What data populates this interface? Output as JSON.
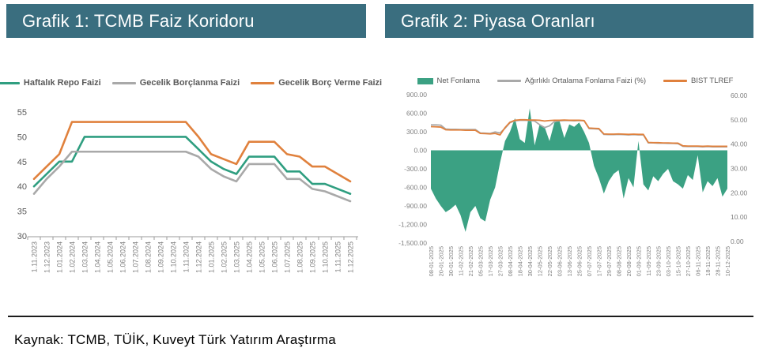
{
  "page": {
    "source_note": "Kaynak: TCMB, TÜİK,  Kuveyt Türk Yatırım Araştırma"
  },
  "colors": {
    "header_bg": "#3a6e7f",
    "teal_line": "#2f9e80",
    "gray_line": "#a9a9a9",
    "orange_line": "#e0813d",
    "green_area": "#3ba183",
    "axis_label": "#7f7f7f",
    "tick_label": "#595959"
  },
  "chart_data": [
    {
      "type": "line",
      "title": "Grafik 1: TCMB Faiz Koridoru",
      "legend_position": "top",
      "grid": false,
      "ylim": [
        30,
        55
      ],
      "yticks": [
        30,
        35,
        40,
        45,
        50,
        55
      ],
      "categories": [
        "1.11.2023",
        "1.12.2023",
        "1.01.2024",
        "1.02.2024",
        "1.03.2024",
        "1.04.2024",
        "1.05.2024",
        "1.06.2024",
        "1.07.2024",
        "1.08.2024",
        "1.09.2024",
        "1.10.2024",
        "1.11.2024",
        "1.12.2024",
        "1.01.2025",
        "1.02.2025",
        "1.03.2025",
        "1.04.2025",
        "1.05.2025",
        "1.06.2025",
        "1.07.2025",
        "1.08.2025",
        "1.09.2025",
        "1.10.2025",
        "1.11.2025",
        "1.12.2025"
      ],
      "series": [
        {
          "name": "Haftalık Repo Faizi",
          "color": "#2f9e80",
          "marker": "line",
          "values": [
            40,
            42.5,
            45,
            45,
            50,
            50,
            50,
            50,
            50,
            50,
            50,
            50,
            50,
            47.5,
            45,
            43.5,
            42.5,
            46,
            46,
            46,
            43,
            43,
            40.5,
            40.5,
            39.5,
            38.5
          ]
        },
        {
          "name": "Gecelik Borçlanma Faizi",
          "color": "#a9a9a9",
          "marker": "line",
          "values": [
            38.5,
            41.5,
            44,
            47,
            47,
            47,
            47,
            47,
            47,
            47,
            47,
            47,
            47,
            46,
            43.5,
            42,
            41,
            44.5,
            44.5,
            44.5,
            41.5,
            41.5,
            39.5,
            39,
            38,
            37
          ]
        },
        {
          "name": "Gecelik Borç Verme Faizi",
          "color": "#e0813d",
          "marker": "line",
          "values": [
            41.5,
            44,
            46.5,
            53,
            53,
            53,
            53,
            53,
            53,
            53,
            53,
            53,
            53,
            50,
            46.5,
            45.5,
            44.5,
            49,
            49,
            49,
            46.5,
            46,
            44,
            44,
            42.5,
            41
          ]
        }
      ]
    },
    {
      "type": "combo",
      "title": "Grafik 2: Piyasa Oranları",
      "legend_position": "top",
      "grid": false,
      "left_ylim": [
        -1500,
        900
      ],
      "left_ytick_values": [
        900,
        600,
        300,
        0,
        -300,
        -600,
        -900,
        -1200,
        -1500
      ],
      "left_ytick_labels": [
        "900.00",
        "600.00",
        "300.00",
        "0.00",
        "-300.00",
        "-600.00",
        "-900.00",
        "-1,200.00",
        "-1,500.00"
      ],
      "right_ylim": [
        0,
        60
      ],
      "right_ytick_values": [
        60,
        50,
        40,
        30,
        20,
        10,
        0
      ],
      "right_ytick_labels": [
        "60.00",
        "50.00",
        "40.00",
        "30.00",
        "20.00",
        "10.00",
        "0.00"
      ],
      "x_labels": [
        "08-01-2025",
        "20-01-2025",
        "30-01-2025",
        "11-02-2025",
        "21-02-2025",
        "05-03-2025",
        "17-03-2025",
        "27-03-2025",
        "08-04-2025",
        "18-04-2025",
        "30-04-2025",
        "12-05-2025",
        "22-05-2025",
        "03-06-2025",
        "13-06-2025",
        "25-06-2025",
        "07-07-2025",
        "17-07-2025",
        "29-07-2025",
        "08-08-2025",
        "20-08-2025",
        "01-09-2025",
        "11-09-2025",
        "23-09-2025",
        "03-10-2025",
        "15-10-2025",
        "27-10-2025",
        "06-11-2025",
        "18-11-2025",
        "28-11-2025",
        "10-12-2025"
      ],
      "area_series": {
        "name": "Net Fonlama",
        "color": "#3ba183",
        "axis": "left",
        "marker": "rect",
        "values": [
          -620,
          -780,
          -900,
          -1000,
          -950,
          -880,
          -1050,
          -1320,
          -1000,
          -900,
          -1100,
          -1150,
          -800,
          -600,
          -200,
          150,
          300,
          520,
          180,
          120,
          680,
          80,
          420,
          380,
          150,
          450,
          480,
          200,
          420,
          380,
          450,
          300,
          120,
          -250,
          -450,
          -700,
          -500,
          -380,
          -320,
          -780,
          -450,
          -600,
          150,
          -550,
          -650,
          -420,
          -500,
          -380,
          -300,
          -500,
          -550,
          -620,
          -400,
          -480,
          -80,
          -680,
          -500,
          -580,
          -450,
          -750,
          -620
        ]
      },
      "line_series": [
        {
          "name": "Ağırlıklı Ortalama Fonlama Faizi (%)",
          "color": "#a9a9a9",
          "axis": "right",
          "marker": "line",
          "values": [
            47.9,
            47.9,
            47.8,
            46.2,
            46.1,
            46.1,
            46.0,
            46.0,
            46.0,
            46.0,
            44.6,
            44.5,
            44.4,
            45.0,
            44.6,
            46.5,
            48.8,
            49.6,
            49.8,
            49.8,
            49.7,
            49.5,
            48.0,
            46.8,
            47.5,
            49.3,
            49.6,
            49.7,
            49.7,
            49.6,
            49.7,
            49.6,
            46.4,
            46.3,
            46.2,
            44.0,
            43.9,
            43.9,
            44.0,
            43.9,
            43.8,
            43.9,
            43.8,
            43.8,
            40.5,
            40.5,
            40.4,
            40.4,
            40.3,
            40.3,
            40.2,
            39.1,
            39.0,
            39.0,
            39.0,
            38.9,
            39.0,
            38.9,
            38.9,
            38.9,
            38.9
          ]
        },
        {
          "name": "BIST TLREF",
          "color": "#e0813d",
          "axis": "right",
          "marker": "line",
          "values": [
            47.2,
            47.1,
            47.0,
            45.9,
            45.8,
            45.8,
            45.8,
            45.7,
            45.7,
            45.7,
            44.4,
            44.3,
            44.2,
            44.4,
            43.8,
            46.8,
            49.0,
            49.8,
            50.0,
            50.0,
            49.9,
            49.9,
            49.8,
            49.5,
            49.7,
            49.8,
            49.8,
            49.9,
            49.8,
            49.8,
            49.8,
            49.7,
            46.6,
            46.5,
            46.4,
            44.2,
            44.1,
            44.1,
            44.2,
            44.1,
            44.0,
            44.1,
            44.0,
            44.0,
            40.7,
            40.6,
            40.6,
            40.5,
            40.5,
            40.4,
            40.4,
            39.3,
            39.2,
            39.2,
            39.2,
            39.1,
            39.2,
            39.1,
            39.1,
            39.1,
            39.1
          ]
        }
      ]
    }
  ]
}
